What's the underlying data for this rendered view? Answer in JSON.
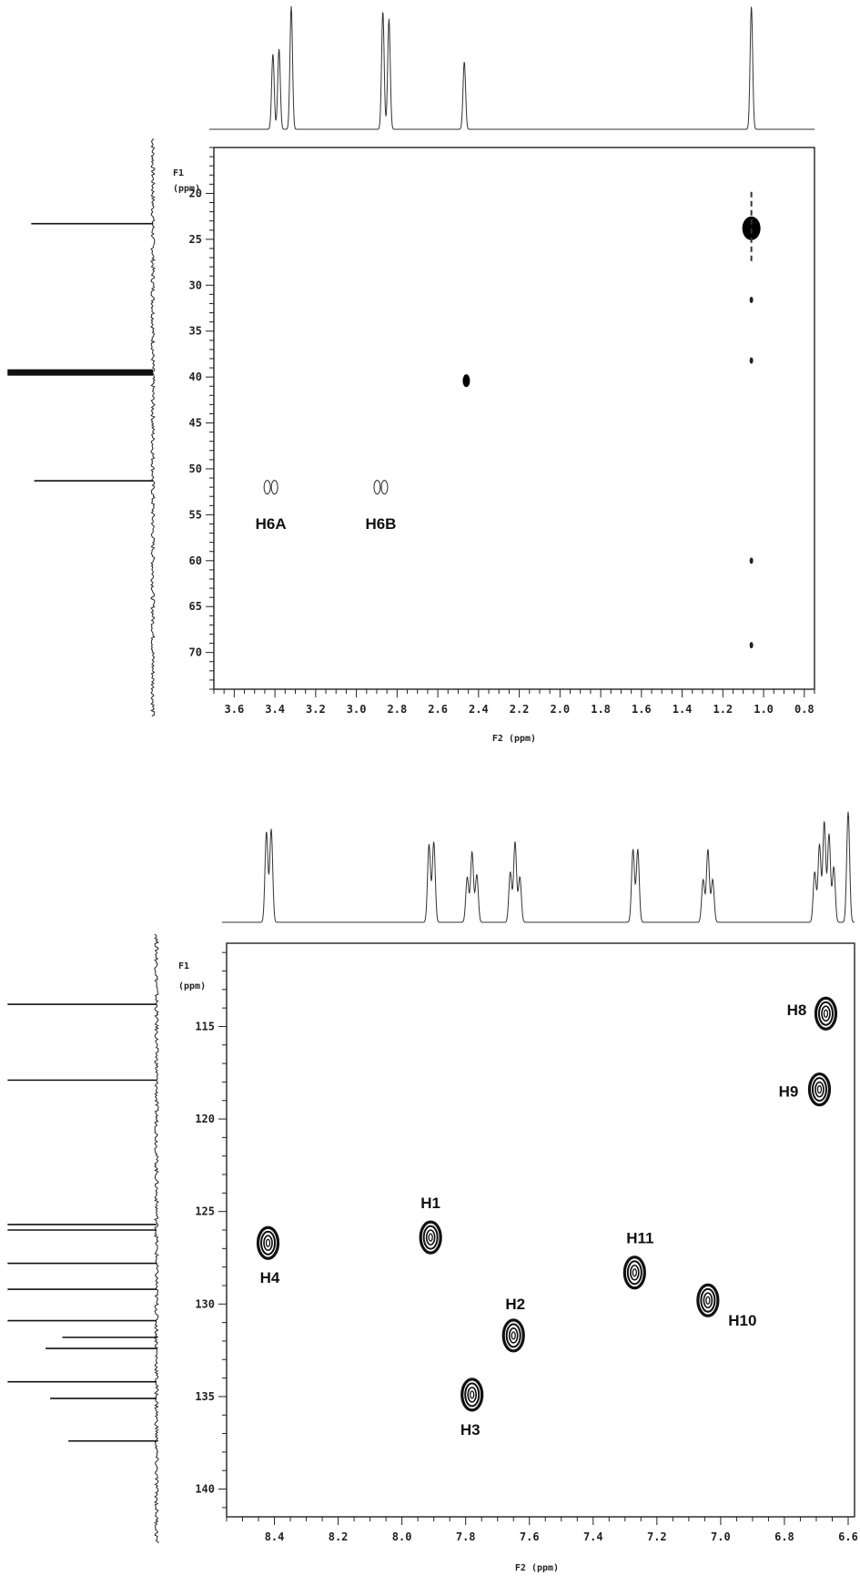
{
  "chart_data": [
    {
      "type": "scatter",
      "subtype": "2D NMR heteronuclear correlation spectrum",
      "x_axis": {
        "label": "F2  (ppm)",
        "range": [
          3.7,
          0.75
        ],
        "reversed": true,
        "ticks": [
          "3.6",
          "3.4",
          "3.2",
          "3.0",
          "2.8",
          "2.6",
          "2.4",
          "2.2",
          "2.0",
          "1.8",
          "1.6",
          "1.4",
          "1.2",
          "1.0",
          "0.8"
        ]
      },
      "y_axis": {
        "label_line1": "F1",
        "label_line2": "(ppm)",
        "range": [
          15,
          74
        ],
        "ticks": [
          "20",
          "25",
          "30",
          "35",
          "40",
          "45",
          "50",
          "55",
          "60",
          "65",
          "70"
        ]
      },
      "cross_peaks": [
        {
          "label": "H6A",
          "x": 3.42,
          "y": 52.0,
          "style": "open-pair"
        },
        {
          "label": "H6B",
          "x": 2.88,
          "y": 52.0,
          "style": "open-pair"
        },
        {
          "label": "",
          "x": 2.46,
          "y": 40.4,
          "style": "filled-small"
        },
        {
          "label": "",
          "x": 1.06,
          "y": 23.8,
          "style": "filled-large"
        },
        {
          "label": "",
          "x": 1.06,
          "y": 31.6,
          "style": "dot"
        },
        {
          "label": "",
          "x": 1.06,
          "y": 38.2,
          "style": "dot"
        },
        {
          "label": "",
          "x": 1.06,
          "y": 60.0,
          "style": "dot"
        },
        {
          "label": "",
          "x": 1.06,
          "y": 69.2,
          "style": "dot"
        }
      ],
      "f2_projection_peaks": [
        {
          "x": 3.41,
          "height": 0.6
        },
        {
          "x": 3.38,
          "height": 0.64
        },
        {
          "x": 3.32,
          "height": 0.98
        },
        {
          "x": 2.87,
          "height": 0.94
        },
        {
          "x": 2.84,
          "height": 0.88
        },
        {
          "x": 2.47,
          "height": 0.54
        },
        {
          "x": 1.06,
          "height": 0.98
        }
      ],
      "f1_projection_peaks": [
        {
          "y": 23.3,
          "intensity": 0.82
        },
        {
          "y": 39.5,
          "intensity": 0.98
        },
        {
          "y": 51.3,
          "intensity": 0.8
        }
      ]
    },
    {
      "type": "scatter",
      "subtype": "2D NMR heteronuclear correlation spectrum",
      "x_axis": {
        "label": "F2  (ppm)",
        "range": [
          8.55,
          6.58
        ],
        "reversed": true,
        "ticks": [
          "8.4",
          "8.2",
          "8.0",
          "7.8",
          "7.6",
          "7.4",
          "7.2",
          "7.0",
          "6.8",
          "6.6"
        ]
      },
      "y_axis": {
        "label_line1": "F1",
        "label_line2": "(ppm)",
        "range": [
          110.5,
          141.5
        ],
        "ticks": [
          "115",
          "120",
          "125",
          "130",
          "135",
          "140"
        ]
      },
      "cross_peaks": [
        {
          "label": "H8",
          "x": 6.67,
          "y": 114.3
        },
        {
          "label": "H9",
          "x": 6.69,
          "y": 118.4
        },
        {
          "label": "H1",
          "x": 7.91,
          "y": 126.4
        },
        {
          "label": "H4",
          "x": 8.42,
          "y": 126.7
        },
        {
          "label": "H11",
          "x": 7.27,
          "y": 128.3
        },
        {
          "label": "H10",
          "x": 7.04,
          "y": 129.8
        },
        {
          "label": "H2",
          "x": 7.65,
          "y": 131.7
        },
        {
          "label": "H3",
          "x": 7.78,
          "y": 134.9
        }
      ],
      "f2_projection_peaks": [
        {
          "x": 8.425,
          "height": 0.72
        },
        {
          "x": 8.41,
          "height": 0.74
        },
        {
          "x": 7.915,
          "height": 0.62
        },
        {
          "x": 7.9,
          "height": 0.64
        },
        {
          "x": 7.795,
          "height": 0.36
        },
        {
          "x": 7.78,
          "height": 0.56
        },
        {
          "x": 7.765,
          "height": 0.38
        },
        {
          "x": 7.66,
          "height": 0.4
        },
        {
          "x": 7.645,
          "height": 0.64
        },
        {
          "x": 7.63,
          "height": 0.36
        },
        {
          "x": 7.275,
          "height": 0.58
        },
        {
          "x": 7.26,
          "height": 0.58
        },
        {
          "x": 7.055,
          "height": 0.34
        },
        {
          "x": 7.04,
          "height": 0.58
        },
        {
          "x": 7.025,
          "height": 0.34
        },
        {
          "x": 6.705,
          "height": 0.4
        },
        {
          "x": 6.69,
          "height": 0.62
        },
        {
          "x": 6.675,
          "height": 0.8
        },
        {
          "x": 6.66,
          "height": 0.7
        },
        {
          "x": 6.645,
          "height": 0.44
        },
        {
          "x": 6.6,
          "height": 0.88
        }
      ],
      "f1_projection_peaks": [
        {
          "y": 113.8,
          "intensity": 0.98
        },
        {
          "y": 117.9,
          "intensity": 0.98
        },
        {
          "y": 125.7,
          "intensity": 0.98
        },
        {
          "y": 126.0,
          "intensity": 0.98
        },
        {
          "y": 127.8,
          "intensity": 0.98
        },
        {
          "y": 129.2,
          "intensity": 0.98
        },
        {
          "y": 130.9,
          "intensity": 0.98
        },
        {
          "y": 131.8,
          "intensity": 0.62
        },
        {
          "y": 132.4,
          "intensity": 0.73
        },
        {
          "y": 134.2,
          "intensity": 0.98
        },
        {
          "y": 135.1,
          "intensity": 0.7
        },
        {
          "y": 137.4,
          "intensity": 0.58
        }
      ]
    }
  ]
}
